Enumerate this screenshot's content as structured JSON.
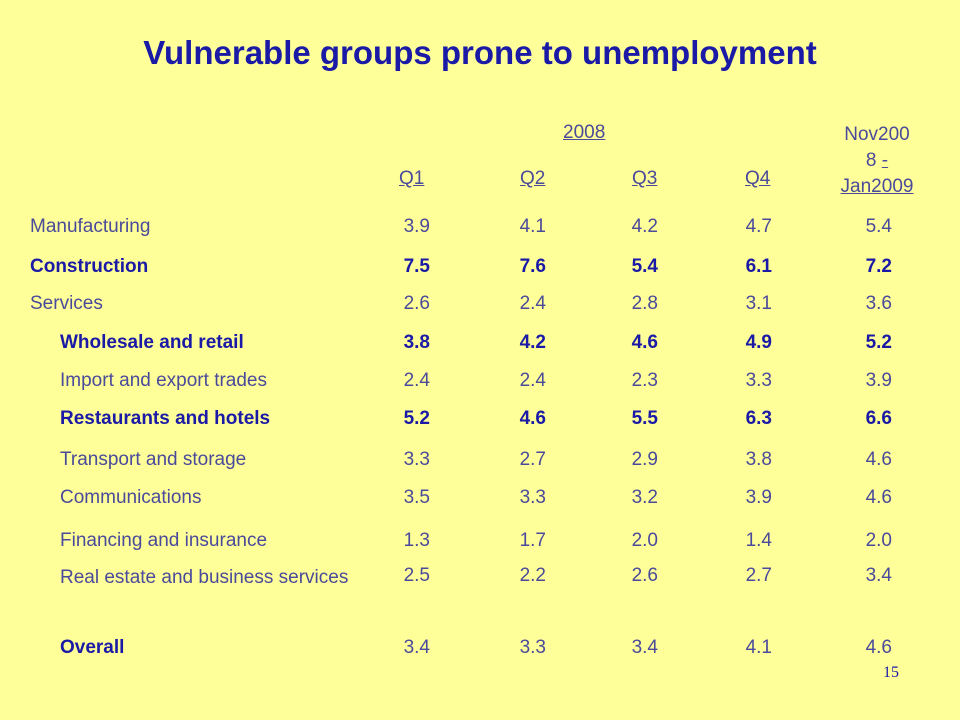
{
  "title": "Vulnerable groups prone to unemployment",
  "header": {
    "year": "2008",
    "quarters": [
      "Q1",
      "Q2",
      "Q3",
      "Q4"
    ],
    "latest_line1": "Nov200",
    "latest_line2a": "8 ",
    "latest_line2b": "-",
    "latest_line3": "Jan2009"
  },
  "rows": [
    {
      "label": "Manufacturing",
      "values": [
        "3.9",
        "4.1",
        "4.2",
        "4.7",
        "5.4"
      ]
    },
    {
      "label": "Construction",
      "values": [
        "7.5",
        "7.6",
        "5.4",
        "6.1",
        "7.2"
      ]
    },
    {
      "label": "Services",
      "values": [
        "2.6",
        "2.4",
        "2.8",
        "3.1",
        "3.6"
      ]
    },
    {
      "label": "Wholesale and retail",
      "values": [
        "3.8",
        "4.2",
        "4.6",
        "4.9",
        "5.2"
      ]
    },
    {
      "label": "Import and export trades",
      "values": [
        "2.4",
        "2.4",
        "2.3",
        "3.3",
        "3.9"
      ]
    },
    {
      "label": "Restaurants and hotels",
      "values": [
        "5.2",
        "4.6",
        "5.5",
        "6.3",
        "6.6"
      ]
    },
    {
      "label": "Transport and storage",
      "values": [
        "3.3",
        "2.7",
        "2.9",
        "3.8",
        "4.6"
      ]
    },
    {
      "label": "Communications",
      "values": [
        "3.5",
        "3.3",
        "3.2",
        "3.9",
        "4.6"
      ]
    },
    {
      "label": "Financing and insurance",
      "values": [
        "1.3",
        "1.7",
        "2.0",
        "1.4",
        "2.0"
      ]
    },
    {
      "label": "Real estate and business services",
      "values": [
        "2.5",
        "2.2",
        "2.6",
        "2.7",
        "3.4"
      ]
    },
    {
      "label": "Overall",
      "values": [
        "3.4",
        "3.3",
        "3.4",
        "4.1",
        "4.6"
      ]
    }
  ],
  "page_number": "15"
}
